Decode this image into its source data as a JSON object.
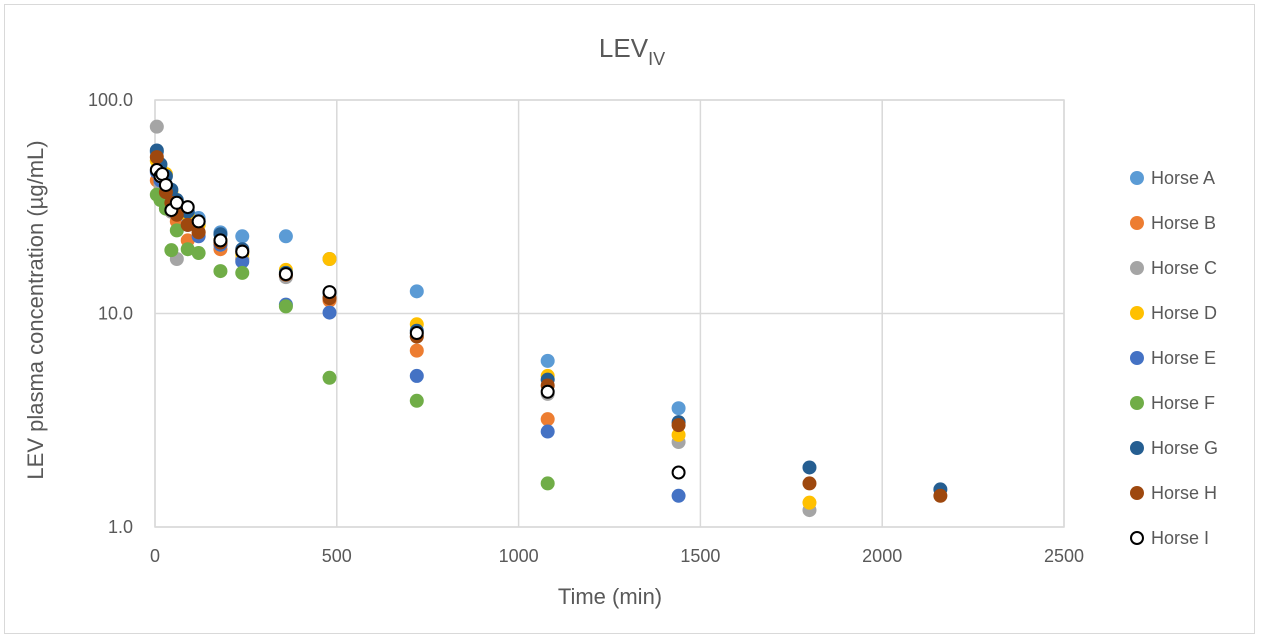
{
  "chart_data": {
    "type": "scatter",
    "title": "LEV",
    "title_subscript": "IV",
    "xlabel": "Time (min)",
    "ylabel": "LEV plasma concentration  (µg/mL)",
    "xlim": [
      0,
      2500
    ],
    "ylim": [
      1,
      100
    ],
    "yscale": "log",
    "grid": true,
    "legend": "right",
    "x_ticks": [
      "0",
      "500",
      "1000",
      "1500",
      "2000",
      "2500"
    ],
    "y_ticks": [
      "1.0",
      "10.0",
      "100.0"
    ],
    "series": [
      {
        "name": "Horse A",
        "color": "#5B9BD5",
        "hollow": false,
        "x": [
          5,
          15,
          30,
          45,
          60,
          90,
          120,
          180,
          240,
          360,
          480,
          720,
          1080,
          1440
        ],
        "y": [
          57,
          48,
          40,
          35,
          33,
          30,
          28,
          24,
          23,
          23,
          18,
          12.7,
          6.0,
          3.6
        ]
      },
      {
        "name": "Horse B",
        "color": "#ED7D31",
        "hollow": false,
        "x": [
          5,
          15,
          30,
          45,
          60,
          90,
          120,
          180,
          240,
          360,
          480,
          720,
          1080
        ],
        "y": [
          42,
          38,
          33,
          30,
          27,
          22,
          24,
          20,
          18,
          15,
          11.5,
          6.7,
          3.2
        ]
      },
      {
        "name": "Horse C",
        "color": "#A5A5A5",
        "hollow": false,
        "x": [
          5,
          15,
          30,
          45,
          60,
          90,
          120,
          180,
          240,
          360,
          480,
          720,
          1080,
          1440,
          1800
        ],
        "y": [
          75,
          40,
          31,
          30,
          18,
          28,
          26,
          21,
          18,
          14.8,
          12,
          7.8,
          4.2,
          2.5,
          1.2
        ]
      },
      {
        "name": "Horse D",
        "color": "#FFC000",
        "hollow": false,
        "x": [
          5,
          15,
          30,
          45,
          60,
          90,
          120,
          180,
          240,
          360,
          480,
          720,
          1080,
          1440,
          1800
        ],
        "y": [
          52,
          48,
          45,
          37,
          33,
          29,
          26,
          22,
          19,
          16,
          18,
          8.9,
          5.1,
          2.7,
          1.3
        ]
      },
      {
        "name": "Horse E",
        "color": "#4472C4",
        "hollow": false,
        "x": [
          5,
          15,
          30,
          45,
          60,
          90,
          120,
          180,
          240,
          360,
          480,
          720,
          1080,
          1440
        ],
        "y": [
          46,
          42,
          37,
          33,
          30,
          26,
          23,
          21,
          17.5,
          11,
          10.1,
          5.1,
          2.8,
          1.4
        ]
      },
      {
        "name": "Horse F",
        "color": "#70AD47",
        "hollow": false,
        "x": [
          5,
          15,
          30,
          45,
          60,
          90,
          120,
          180,
          240,
          360,
          480,
          720,
          1080
        ],
        "y": [
          36,
          34,
          31,
          19.8,
          24.5,
          20,
          19.2,
          15.8,
          15.5,
          10.8,
          5.0,
          3.9,
          1.6
        ]
      },
      {
        "name": "Horse G",
        "color": "#255E91",
        "hollow": false,
        "x": [
          5,
          15,
          30,
          45,
          60,
          90,
          120,
          180,
          240,
          360,
          480,
          720,
          1080,
          1440,
          1800,
          2160
        ],
        "y": [
          58,
          50,
          44,
          38,
          34,
          30,
          27,
          23.5,
          20,
          15.5,
          12.5,
          8.3,
          4.9,
          3.1,
          1.9,
          1.5
        ]
      },
      {
        "name": "Horse H",
        "color": "#9E480E",
        "hollow": false,
        "x": [
          5,
          15,
          30,
          45,
          60,
          90,
          120,
          180,
          240,
          360,
          480,
          720,
          1080,
          1440,
          1800,
          2160
        ],
        "y": [
          54,
          44,
          37,
          33,
          29,
          26,
          24,
          21.5,
          19.5,
          15.2,
          11.8,
          7.8,
          4.6,
          3.0,
          1.6,
          1.4
        ]
      },
      {
        "name": "Horse I",
        "color": "#000000",
        "hollow": true,
        "x": [
          5,
          15,
          20,
          30,
          45,
          60,
          90,
          120,
          180,
          240,
          360,
          480,
          720,
          1080,
          1440
        ],
        "y": [
          47,
          44,
          45,
          40,
          30.5,
          33,
          31.5,
          27,
          22,
          19.5,
          15.3,
          12.6,
          8.1,
          4.3,
          1.8
        ]
      }
    ]
  }
}
